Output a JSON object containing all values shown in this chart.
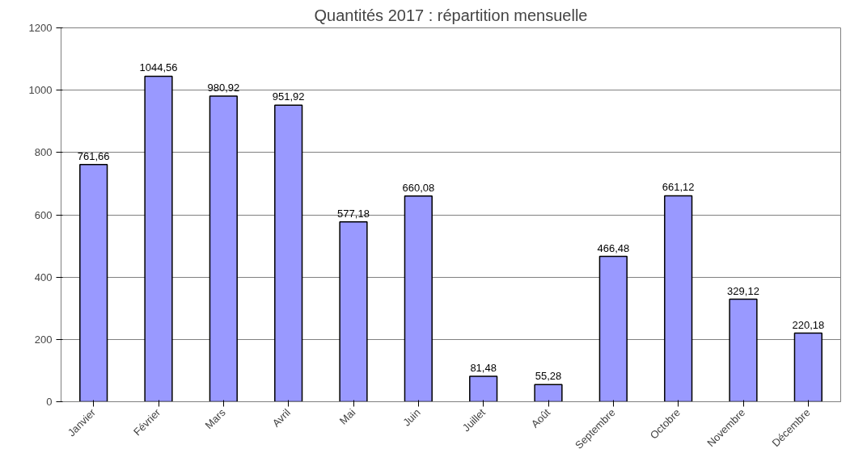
{
  "chart_data": {
    "type": "bar",
    "title": "Quantités 2017 : répartition mensuelle",
    "categories": [
      "Janvier",
      "Février",
      "Mars",
      "Avril",
      "Mai",
      "Juin",
      "Juillet",
      "Août",
      "Septembre",
      "Octobre",
      "Novembre",
      "Décembre"
    ],
    "values": [
      761.66,
      1044.56,
      980.92,
      951.92,
      577.18,
      660.08,
      81.48,
      55.28,
      466.48,
      661.12,
      329.12,
      220.18
    ],
    "value_labels": [
      "761,66",
      "1044,56",
      "980,92",
      "951,92",
      "577,18",
      "660,08",
      "81,48",
      "55,28",
      "466,48",
      "661,12",
      "329,12",
      "220,18"
    ],
    "color": "#9999ff",
    "ylim": [
      0,
      1200
    ],
    "yticks": [
      0,
      200,
      400,
      600,
      800,
      1000,
      1200
    ],
    "grid": "y"
  }
}
